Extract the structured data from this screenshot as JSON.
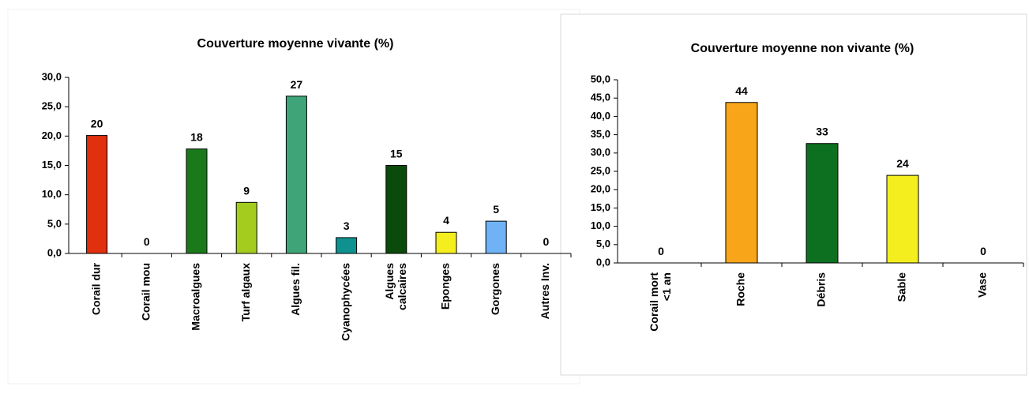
{
  "chart_data": [
    {
      "type": "bar",
      "title": "Couverture moyenne vivante (%)",
      "categories": [
        "Corail dur",
        "Corail mou",
        "Macroalgues",
        "Turf algaux",
        "Algues fil.",
        "Cyanophycées",
        "Algues\ncalcaires",
        "Eponges",
        "Gorgones",
        "Autres Inv."
      ],
      "values": [
        20.1,
        0,
        17.8,
        8.7,
        26.8,
        2.7,
        15.0,
        3.6,
        5.5,
        0
      ],
      "value_labels": [
        "20",
        "0",
        "18",
        "9",
        "27",
        "3",
        "15",
        "4",
        "5",
        "0"
      ],
      "colors": [
        "#e0300e",
        "#e0300e",
        "#1a7a1a",
        "#a4cc1f",
        "#3fa578",
        "#0f9190",
        "#0a4a0a",
        "#f4ee1e",
        "#6fb2f5",
        "#6fb2f5"
      ],
      "ylim": [
        0,
        30
      ],
      "yticks": [
        {
          "value": 0,
          "label": "0,0"
        },
        {
          "value": 5,
          "label": "5,0"
        },
        {
          "value": 10,
          "label": "10,0"
        },
        {
          "value": 15,
          "label": "15,0"
        },
        {
          "value": 20,
          "label": "20,0"
        },
        {
          "value": 25,
          "label": "25,0"
        },
        {
          "value": 30,
          "label": "30,0"
        }
      ]
    },
    {
      "type": "bar",
      "title": "Couverture moyenne non vivante (%)",
      "categories": [
        "Corail mort\n<1 an",
        "Roche",
        "Débris",
        "Sable",
        "Vase"
      ],
      "values": [
        0,
        43.8,
        32.6,
        23.9,
        0
      ],
      "value_labels": [
        "0",
        "44",
        "33",
        "24",
        "0"
      ],
      "colors": [
        "#f9a51a",
        "#f9a51a",
        "#0d7020",
        "#f4ee1e",
        "#f4ee1e"
      ],
      "ylim": [
        0,
        50
      ],
      "yticks": [
        {
          "value": 0,
          "label": "0,0"
        },
        {
          "value": 5,
          "label": "5,0"
        },
        {
          "value": 10,
          "label": "10,0"
        },
        {
          "value": 15,
          "label": "15,0"
        },
        {
          "value": 20,
          "label": "20,0"
        },
        {
          "value": 25,
          "label": "25,0"
        },
        {
          "value": 30,
          "label": "30,0"
        },
        {
          "value": 35,
          "label": "35,0"
        },
        {
          "value": 40,
          "label": "40,0"
        },
        {
          "value": 45,
          "label": "45,0"
        },
        {
          "value": 50,
          "label": "50,0"
        }
      ]
    }
  ]
}
